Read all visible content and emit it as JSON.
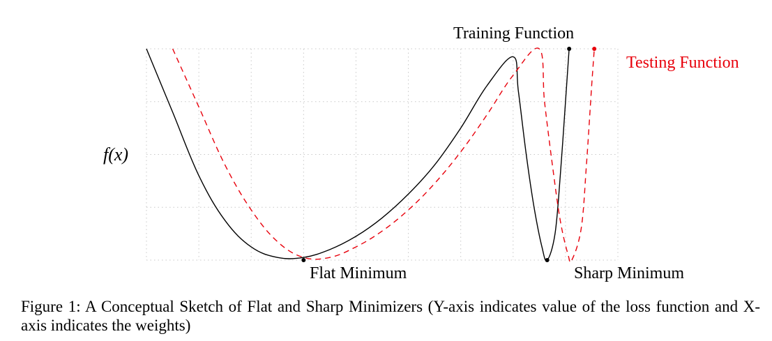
{
  "figure": {
    "y_label": "f(x)",
    "labels": {
      "training_function": "Training Function",
      "testing_function": "Testing Function",
      "flat_minimum": "Flat Minimum",
      "sharp_minimum": "Sharp Minimum"
    },
    "caption": {
      "prefix": "Figure 1:",
      "text": "A Conceptual Sketch of Flat and Sharp Minimizers (Y-axis indicates value of the loss function and X-axis indicates the weights)"
    }
  },
  "chart_data": {
    "type": "line",
    "xlabel": "",
    "ylabel": "f(x)",
    "xlim": [
      0,
      9
    ],
    "ylim": [
      0,
      4
    ],
    "grid": true,
    "series": [
      {
        "name": "Training Function",
        "style": "solid",
        "color": "#000000",
        "points": [
          [
            0.0,
            4.0
          ],
          [
            0.5,
            2.8
          ],
          [
            1.0,
            1.6
          ],
          [
            1.5,
            0.75
          ],
          [
            2.0,
            0.25
          ],
          [
            2.5,
            0.05
          ],
          [
            3.0,
            0.05
          ],
          [
            3.5,
            0.2
          ],
          [
            4.0,
            0.45
          ],
          [
            4.5,
            0.8
          ],
          [
            5.0,
            1.25
          ],
          [
            5.5,
            1.8
          ],
          [
            6.0,
            2.5
          ],
          [
            6.5,
            3.3
          ],
          [
            7.0,
            3.85
          ],
          [
            7.1,
            3.2
          ],
          [
            7.25,
            2.0
          ],
          [
            7.4,
            1.0
          ],
          [
            7.55,
            0.25
          ],
          [
            7.65,
            0.0
          ],
          [
            7.8,
            0.5
          ],
          [
            7.9,
            1.6
          ],
          [
            8.0,
            3.0
          ],
          [
            8.07,
            4.0
          ]
        ]
      },
      {
        "name": "Testing Function",
        "style": "dashed",
        "color": "#e8000b",
        "points": [
          [
            0.5,
            4.0
          ],
          [
            1.0,
            2.9
          ],
          [
            1.5,
            1.8
          ],
          [
            2.0,
            0.95
          ],
          [
            2.5,
            0.35
          ],
          [
            3.0,
            0.05
          ],
          [
            3.5,
            0.05
          ],
          [
            4.0,
            0.25
          ],
          [
            4.5,
            0.55
          ],
          [
            5.0,
            0.95
          ],
          [
            5.5,
            1.45
          ],
          [
            6.0,
            2.05
          ],
          [
            6.5,
            2.75
          ],
          [
            7.0,
            3.5
          ],
          [
            7.5,
            4.0
          ],
          [
            7.6,
            3.0
          ],
          [
            7.75,
            1.8
          ],
          [
            7.9,
            0.75
          ],
          [
            8.05,
            0.1
          ],
          [
            8.12,
            0.0
          ],
          [
            8.3,
            0.6
          ],
          [
            8.4,
            1.8
          ],
          [
            8.5,
            3.3
          ],
          [
            8.55,
            4.0
          ]
        ]
      }
    ],
    "markers": [
      {
        "label": "Flat Minimum",
        "x": 3.0,
        "y": 0.0,
        "color": "#000000"
      },
      {
        "label": "Sharp Minimum",
        "x": 7.65,
        "y": 0.0,
        "color": "#000000"
      },
      {
        "label": "",
        "x": 8.07,
        "y": 4.0,
        "color": "#000000"
      },
      {
        "label": "",
        "x": 8.55,
        "y": 4.0,
        "color": "#e8000b"
      }
    ]
  }
}
